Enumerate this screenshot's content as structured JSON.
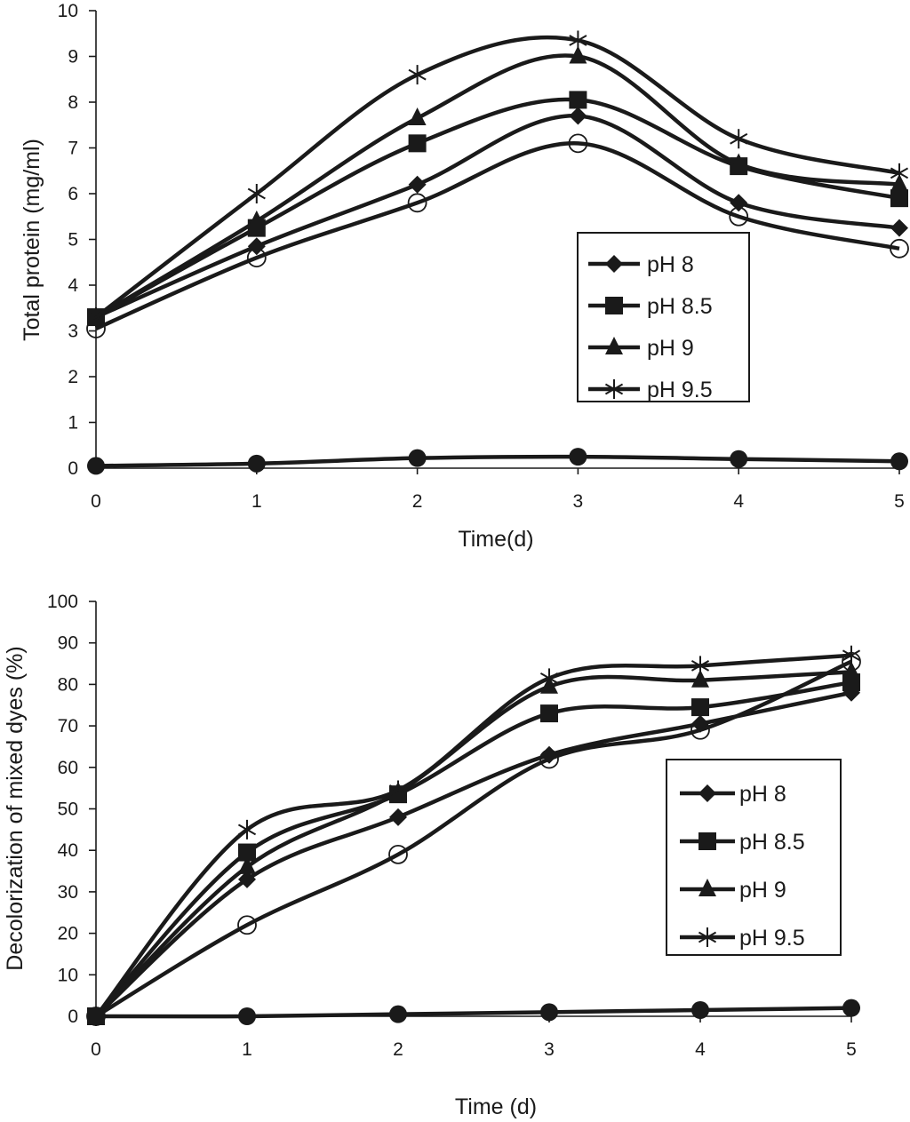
{
  "chart_data": [
    {
      "type": "line",
      "title": "",
      "xlabel": "Time(d)",
      "ylabel": "Total  protein (mg/ml)",
      "x": [
        0,
        1,
        2,
        3,
        4,
        5
      ],
      "xticks": [
        "0",
        "1",
        "2",
        "3",
        "4",
        "5"
      ],
      "yticks": [
        "0",
        "1",
        "2",
        "3",
        "4",
        "5",
        "6",
        "7",
        "8",
        "9",
        "10"
      ],
      "xlim": [
        0,
        5
      ],
      "ylim": [
        0,
        10
      ],
      "grid": false,
      "smooth": true,
      "legend_position": "center-right",
      "series": [
        {
          "name": "pH 8",
          "marker": "diamond",
          "in_legend": true,
          "values": [
            3.3,
            4.85,
            6.2,
            7.7,
            5.8,
            5.25
          ]
        },
        {
          "name": "pH 8.5",
          "marker": "square",
          "in_legend": true,
          "values": [
            3.3,
            5.25,
            7.1,
            8.05,
            6.6,
            5.9
          ]
        },
        {
          "name": "pH 9",
          "marker": "triangle",
          "in_legend": true,
          "values": [
            3.3,
            5.4,
            7.65,
            9.0,
            6.65,
            6.2
          ]
        },
        {
          "name": "pH 9.5",
          "marker": "asterisk",
          "in_legend": true,
          "values": [
            3.3,
            6.0,
            8.6,
            9.35,
            7.2,
            6.45
          ]
        },
        {
          "name": "unlabeled (open circle)",
          "marker": "open-circle",
          "in_legend": false,
          "values": [
            3.05,
            4.6,
            5.8,
            7.1,
            5.5,
            4.8
          ]
        },
        {
          "name": "unlabeled (filled circle)",
          "marker": "filled-circle",
          "in_legend": false,
          "values": [
            0.05,
            0.1,
            0.22,
            0.25,
            0.2,
            0.15
          ]
        }
      ]
    },
    {
      "type": "line",
      "title": "",
      "xlabel": "Time (d)",
      "ylabel": "Decolorization of mixed dyes (%)",
      "x": [
        0,
        1,
        2,
        3,
        4,
        5
      ],
      "xticks": [
        "0",
        "1",
        "2",
        "3",
        "4",
        "5"
      ],
      "yticks": [
        "0",
        "10",
        "20",
        "30",
        "40",
        "50",
        "60",
        "70",
        "80",
        "90",
        "100"
      ],
      "xlim": [
        0,
        5
      ],
      "ylim": [
        0,
        100
      ],
      "grid": false,
      "smooth": true,
      "legend_position": "center-right",
      "series": [
        {
          "name": "pH 8",
          "marker": "diamond",
          "in_legend": true,
          "values": [
            0,
            33,
            48,
            63,
            70.5,
            78
          ]
        },
        {
          "name": "pH 8.5",
          "marker": "square",
          "in_legend": true,
          "values": [
            0,
            39.5,
            53.5,
            73,
            74.5,
            80.5
          ]
        },
        {
          "name": "pH 9",
          "marker": "triangle",
          "in_legend": true,
          "values": [
            0,
            36,
            54,
            79.5,
            81,
            83
          ]
        },
        {
          "name": "pH 9.5",
          "marker": "asterisk",
          "in_legend": true,
          "values": [
            0,
            45,
            54.5,
            81.5,
            84.5,
            87
          ]
        },
        {
          "name": "unlabeled (open circle)",
          "marker": "open-circle",
          "in_legend": false,
          "values": [
            0,
            22,
            39,
            62,
            69,
            85.5
          ]
        },
        {
          "name": "unlabeled (filled circle)",
          "marker": "filled-circle",
          "in_legend": false,
          "values": [
            0,
            0,
            0.5,
            1,
            1.5,
            2
          ]
        }
      ]
    }
  ]
}
